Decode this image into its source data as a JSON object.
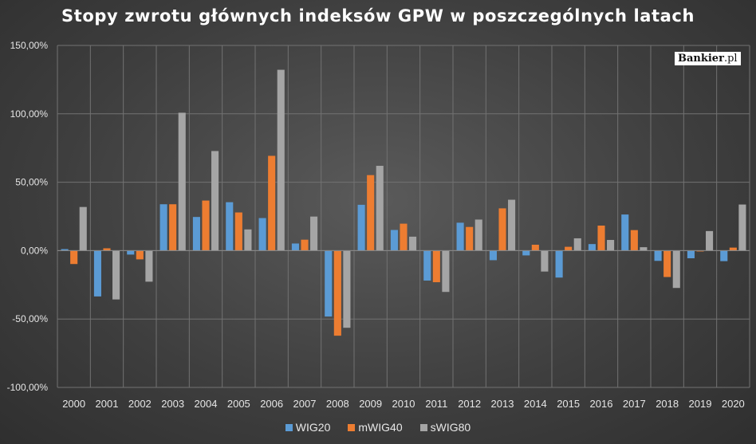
{
  "chart_data": {
    "type": "bar",
    "title": "Stopy zwrotu głównych indeksów GPW w poszczególnych latach",
    "categories": [
      "2000",
      "2001",
      "2002",
      "2003",
      "2004",
      "2005",
      "2006",
      "2007",
      "2008",
      "2009",
      "2010",
      "2011",
      "2012",
      "2013",
      "2014",
      "2015",
      "2016",
      "2017",
      "2018",
      "2019",
      "2020"
    ],
    "series": [
      {
        "name": "WIG20",
        "color": "#5b9bd5",
        "values": [
          1.1,
          -33.5,
          -2.9,
          33.9,
          24.6,
          35.4,
          23.8,
          5.2,
          -48.2,
          33.5,
          15.1,
          -21.9,
          20.4,
          -7.0,
          -3.5,
          -19.7,
          4.8,
          26.4,
          -7.5,
          -5.6,
          -7.7
        ]
      },
      {
        "name": "mWIG40",
        "color": "#ed7d31",
        "values": [
          -9.8,
          1.7,
          -6.4,
          33.9,
          36.6,
          27.9,
          69.3,
          8.0,
          -62.2,
          55.2,
          19.7,
          -23.1,
          17.3,
          30.9,
          4.3,
          2.8,
          18.3,
          15.0,
          -19.3,
          -0.6,
          2.2
        ]
      },
      {
        "name": "sWIG80",
        "color": "#a5a5a5",
        "values": [
          31.9,
          -35.7,
          -22.7,
          100.8,
          72.8,
          15.5,
          132.2,
          24.9,
          -56.4,
          62.0,
          10.2,
          -30.2,
          22.7,
          37.2,
          -15.3,
          9.0,
          7.8,
          2.5,
          -27.3,
          14.3,
          33.7
        ]
      }
    ],
    "ylim": [
      -100,
      150
    ],
    "yticks": [
      -100,
      -50,
      0,
      50,
      100,
      150
    ],
    "ytick_labels": [
      "-100,00%",
      "-50,00%",
      "0,00%",
      "50,00%",
      "100,00%",
      "150,00%"
    ],
    "xlabel": "",
    "ylabel": "",
    "grid": true,
    "legend_position": "bottom"
  },
  "brand": {
    "name": "Bankier",
    "tld": ".pl"
  }
}
